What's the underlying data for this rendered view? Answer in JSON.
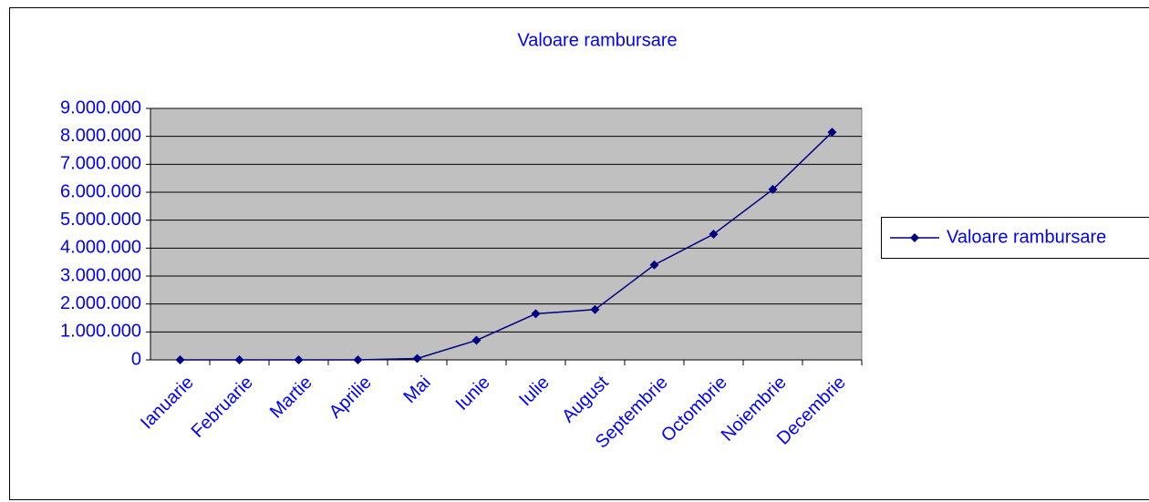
{
  "chart_data": {
    "type": "line",
    "title": "Valoare rambursare",
    "categories": [
      "Ianuarie",
      "Februarie",
      "Martie",
      "Aprilie",
      "Mai",
      "Iunie",
      "Iulie",
      "August",
      "Septembrie",
      "Octombrie",
      "Noiembrie",
      "Decembrie"
    ],
    "series": [
      {
        "name": "Valoare rambursare",
        "color": "#000080",
        "values": [
          0,
          0,
          0,
          0,
          50000,
          700000,
          1650000,
          1800000,
          3400000,
          4500000,
          6100000,
          8150000
        ]
      }
    ],
    "ylim": [
      0,
      9000000
    ],
    "yticks": [
      0,
      {
        "value": 1000000,
        "label": "1.000.000"
      },
      {
        "value": 2000000,
        "label": "2.000.000"
      },
      {
        "value": 3000000,
        "label": "3.000.000"
      },
      {
        "value": 4000000,
        "label": "4.000.000"
      },
      {
        "value": 5000000,
        "label": "5.000.000"
      },
      {
        "value": 6000000,
        "label": "6.000.000"
      },
      {
        "value": 7000000,
        "label": "7.000.000"
      },
      {
        "value": 8000000,
        "label": "8.000.000"
      },
      {
        "value": 9000000,
        "label": "9.000.000"
      }
    ],
    "grid": true,
    "legend": "right"
  }
}
